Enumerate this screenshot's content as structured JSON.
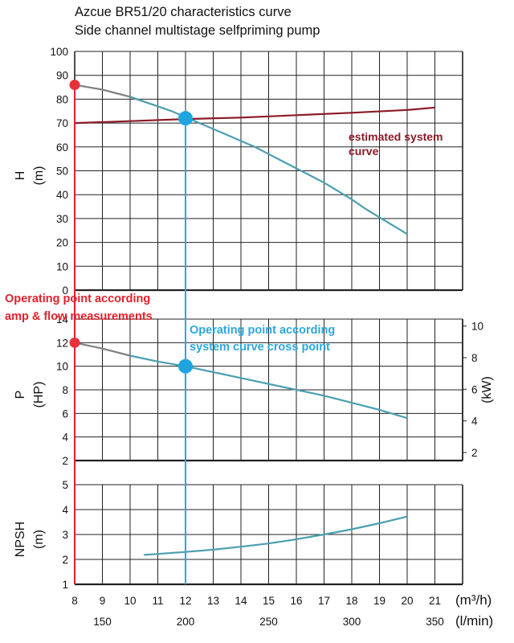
{
  "title_line1": "Azcue BR51/20 characteristics curve",
  "title_line2": "Side channel multistage selfpriming pump",
  "colors": {
    "pump_curve": "#4a9fb0",
    "pump_curve_dashed_start": "#808080",
    "system_curve": "#8b1a26",
    "measured_point": "#e8323a",
    "cross_point": "#1ea5e0",
    "measured_line": "#e3202b",
    "cross_line": "#2aa8de",
    "grid": "#222222"
  },
  "annotations": {
    "system_curve_line1": "estimated system",
    "system_curve_line2": "curve",
    "measured_line1": "Operating point according",
    "measured_line2": "amp & flow measurements",
    "cross_line1": "Operating point according",
    "cross_line2": "system curve cross point"
  },
  "chart_data": [
    {
      "type": "line",
      "id": "head",
      "ylabel_main": "H",
      "ylabel_unit": "(m)",
      "x_unit": "m³/h",
      "xlim": [
        8,
        22
      ],
      "ylim": [
        0,
        100
      ],
      "yticks": [
        0,
        10,
        20,
        30,
        40,
        50,
        60,
        70,
        80,
        90,
        100
      ],
      "grid": true,
      "series": [
        {
          "name": "",
          "role": "pump",
          "x": [
            8,
            8.5,
            9,
            9.5,
            10,
            10.5,
            11,
            11.5,
            12,
            12.5,
            13,
            13.5,
            14,
            14.5,
            15,
            15.5,
            16,
            16.5,
            17,
            17.5,
            18,
            18.5,
            19,
            19.5,
            20
          ],
          "y": [
            86,
            85,
            84,
            82.5,
            81,
            79,
            77,
            75,
            72.5,
            70,
            67.5,
            65,
            62.5,
            60,
            57,
            54,
            51,
            48,
            45,
            41.5,
            38,
            34,
            30.5,
            27,
            23.5
          ]
        },
        {
          "name": "estimated system curve",
          "role": "system",
          "x": [
            8,
            10,
            12,
            14,
            16,
            18,
            20,
            21
          ],
          "y": [
            70,
            70.8,
            71.7,
            72.3,
            73.3,
            74.3,
            75.5,
            76.5
          ]
        }
      ],
      "points": [
        {
          "label": "measured",
          "x": 8,
          "y": 86
        },
        {
          "label": "cross",
          "x": 12,
          "y": 72
        }
      ]
    },
    {
      "type": "line",
      "id": "power",
      "ylabel_main": "P",
      "ylabel_unit": "(HP)",
      "ylabel_right_unit": "(kW)",
      "xlim": [
        8,
        22
      ],
      "ylim": [
        2,
        14
      ],
      "yticks": [
        2,
        4,
        6,
        8,
        10,
        12,
        14
      ],
      "yticks_right": [
        2,
        4,
        6,
        8,
        10
      ],
      "grid": true,
      "series": [
        {
          "name": "",
          "role": "pump",
          "x": [
            8,
            9,
            10,
            11,
            12,
            13,
            14,
            15,
            16,
            17,
            18,
            19,
            20
          ],
          "y": [
            12,
            11.5,
            10.9,
            10.4,
            10.0,
            9.5,
            9.0,
            8.5,
            8.0,
            7.5,
            6.9,
            6.3,
            5.6
          ]
        }
      ],
      "points": [
        {
          "label": "measured",
          "x": 8,
          "y": 12
        },
        {
          "label": "cross",
          "x": 12,
          "y": 10
        }
      ]
    },
    {
      "type": "line",
      "id": "npsh",
      "ylabel_main": "NPSH",
      "ylabel_unit": "(m)",
      "xlim": [
        8,
        22
      ],
      "ylim": [
        1,
        5
      ],
      "yticks": [
        1,
        2,
        3,
        4,
        5
      ],
      "grid": true,
      "series": [
        {
          "name": "",
          "role": "pump",
          "x": [
            10.5,
            11,
            12,
            13,
            14,
            15,
            16,
            17,
            18,
            19,
            20
          ],
          "y": [
            2.18,
            2.22,
            2.3,
            2.39,
            2.51,
            2.64,
            2.81,
            3.0,
            3.21,
            3.45,
            3.72
          ]
        }
      ]
    }
  ],
  "x_axis": {
    "ticks_m3h": [
      "8",
      "9",
      "10",
      "11",
      "12",
      "13",
      "14",
      "15",
      "16",
      "17",
      "18",
      "19",
      "20",
      "21"
    ],
    "unit_m3h": "(m³/h)",
    "ticks_lmin": [
      "150",
      "200",
      "250",
      "300",
      "350"
    ],
    "ticks_lmin_values": [
      150,
      200,
      250,
      300,
      350
    ],
    "unit_lmin": "(l/min)"
  }
}
